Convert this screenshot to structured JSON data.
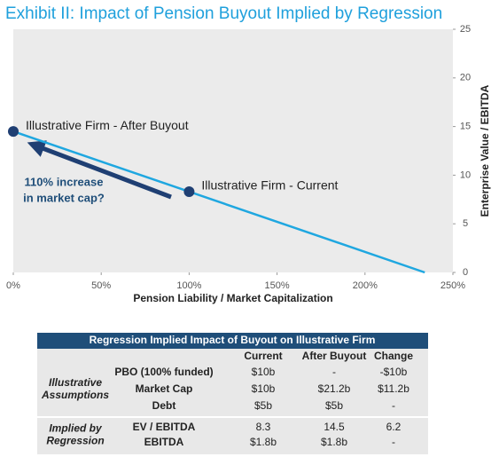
{
  "chart_data": {
    "type": "line",
    "title": "Exhibit II: Impact of Pension Buyout Implied by Regression",
    "x_label": "Pension Liability / Market Capitalization",
    "y_label": "Enterprise Value / EBITDA",
    "y_axis_side": "right",
    "xlim": [
      0,
      250
    ],
    "xticks": [
      {
        "value": 0,
        "label": "0%"
      },
      {
        "value": 50,
        "label": "50%"
      },
      {
        "value": 100,
        "label": "100%"
      },
      {
        "value": 150,
        "label": "150%"
      },
      {
        "value": 200,
        "label": "200%"
      },
      {
        "value": 250,
        "label": "250%"
      }
    ],
    "ylim": [
      0,
      25
    ],
    "yticks": [
      0,
      5,
      10,
      15,
      20,
      25
    ],
    "series": [
      {
        "color": "#1fa7e0",
        "x": [
          0,
          234
        ],
        "values": [
          14.5,
          0
        ]
      }
    ],
    "points": {
      "color": "#1f3f73",
      "x": [
        0,
        100
      ],
      "values": [
        14.5,
        8.3
      ],
      "labels": [
        "Illustrative Firm - After Buyout",
        "Illustrative Firm - Current"
      ]
    },
    "annotation": [
      "110% increase",
      "in market cap?"
    ]
  },
  "table": {
    "title": "Regression Implied Impact of Buyout on Illustrative Firm",
    "columns": [
      "Current",
      "After Buyout",
      "Change"
    ],
    "groups": [
      {
        "label": [
          "Illustrative",
          "Assumptions"
        ],
        "rows": [
          {
            "label": "PBO (100% funded)",
            "cells": [
              "$10b",
              "-",
              "-$10b"
            ]
          },
          {
            "label": "Market Cap",
            "cells": [
              "$10b",
              "$21.2b",
              "$11.2b"
            ]
          },
          {
            "label": "Debt",
            "cells": [
              "$5b",
              "$5b",
              "-"
            ]
          }
        ]
      },
      {
        "label": [
          "Implied by",
          "Regression"
        ],
        "rows": [
          {
            "label": "EV / EBITDA",
            "cells": [
              "8.3",
              "14.5",
              "6.2"
            ]
          },
          {
            "label": "EBITDA",
            "cells": [
              "$1.8b",
              "$1.8b",
              "-"
            ]
          }
        ]
      }
    ]
  }
}
